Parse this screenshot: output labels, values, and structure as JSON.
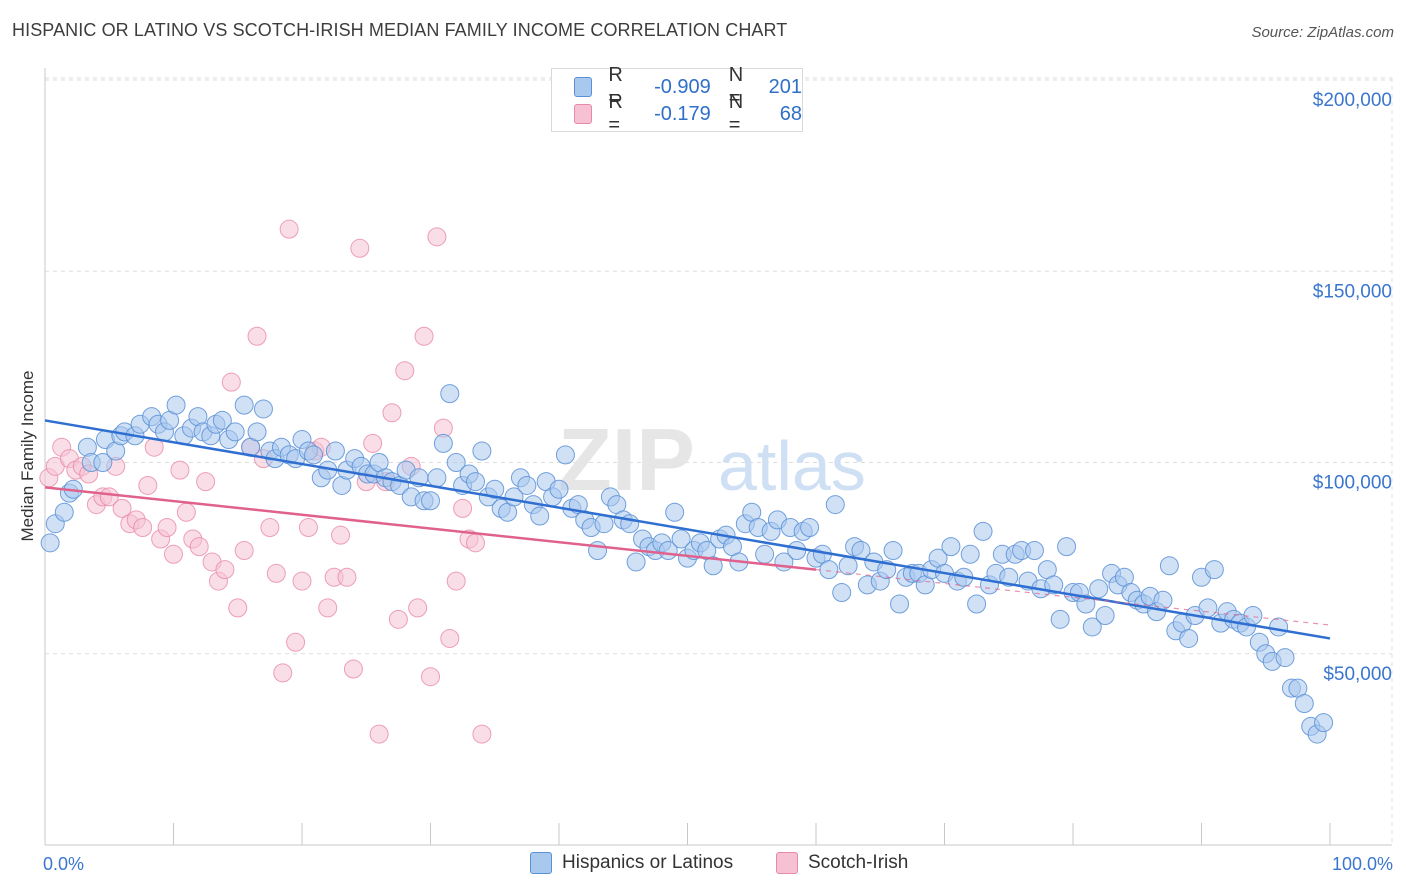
{
  "title": "HISPANIC OR LATINO VS SCOTCH-IRISH MEDIAN FAMILY INCOME CORRELATION CHART",
  "source": "Source: ZipAtlas.com",
  "watermark": {
    "zip": "ZIP",
    "atlas": "atlas"
  },
  "legend_top": [
    {
      "r_label": "R =",
      "r_value": "-0.909",
      "n_label": "N =",
      "n_value": "201"
    },
    {
      "r_label": "R =",
      "r_value": "-0.179",
      "n_label": "N =",
      "n_value": "68"
    }
  ],
  "colors": {
    "blue_fill": "#a9c8ee",
    "blue_stroke": "#5b90d6",
    "blue_line": "#2f6fd1",
    "pink_fill": "#f6c2d3",
    "pink_stroke": "#e889a8",
    "pink_line": "#e0628c",
    "grid": "#dddddd",
    "axis_label": "#3a76cf"
  },
  "chart_data": {
    "type": "scatter",
    "title": "HISPANIC OR LATINO VS SCOTCH-IRISH MEDIAN FAMILY INCOME CORRELATION CHART",
    "ylabel": "Median Family Income",
    "xlim": [
      0,
      100
    ],
    "ylim": [
      0,
      210000
    ],
    "x_tick_labels": [
      "0.0%",
      "100.0%"
    ],
    "y_ticks": [
      50000,
      100000,
      150000,
      200000
    ],
    "y_tick_labels": [
      "$50,000",
      "$100,000",
      "$150,000",
      "$200,000"
    ],
    "series": [
      {
        "name": "Hispanics or Latinos",
        "r": -0.909,
        "n": 201,
        "trend": {
          "x": [
            0,
            100
          ],
          "y": [
            111000,
            54000
          ]
        },
        "points": [
          [
            0.4,
            79000
          ],
          [
            0.8,
            84000
          ],
          [
            1.5,
            87000
          ],
          [
            1.9,
            92000
          ],
          [
            2.2,
            93000
          ],
          [
            3.3,
            104000
          ],
          [
            3.6,
            100000
          ],
          [
            4.5,
            100000
          ],
          [
            4.7,
            106000
          ],
          [
            5.5,
            103000
          ],
          [
            5.9,
            107000
          ],
          [
            6.2,
            108000
          ],
          [
            7.0,
            107000
          ],
          [
            7.4,
            110000
          ],
          [
            8.3,
            112000
          ],
          [
            8.8,
            110000
          ],
          [
            9.3,
            108000
          ],
          [
            9.7,
            111000
          ],
          [
            10.2,
            115000
          ],
          [
            10.8,
            107000
          ],
          [
            11.4,
            109000
          ],
          [
            11.9,
            112000
          ],
          [
            12.3,
            108000
          ],
          [
            12.9,
            107000
          ],
          [
            13.3,
            110000
          ],
          [
            13.8,
            111000
          ],
          [
            14.3,
            106000
          ],
          [
            14.8,
            108000
          ],
          [
            15.5,
            115000
          ],
          [
            16.0,
            104000
          ],
          [
            16.5,
            108000
          ],
          [
            17.0,
            114000
          ],
          [
            17.5,
            103000
          ],
          [
            17.9,
            101000
          ],
          [
            18.4,
            104000
          ],
          [
            19.0,
            102000
          ],
          [
            19.5,
            101000
          ],
          [
            20.0,
            106000
          ],
          [
            20.5,
            103000
          ],
          [
            20.9,
            102000
          ],
          [
            21.5,
            96000
          ],
          [
            22.0,
            98000
          ],
          [
            22.6,
            103000
          ],
          [
            23.1,
            94000
          ],
          [
            23.5,
            98000
          ],
          [
            24.1,
            101000
          ],
          [
            24.6,
            99000
          ],
          [
            25.1,
            97000
          ],
          [
            25.6,
            97000
          ],
          [
            26.0,
            100000
          ],
          [
            26.5,
            96000
          ],
          [
            27.0,
            95000
          ],
          [
            27.6,
            94000
          ],
          [
            28.1,
            98000
          ],
          [
            28.5,
            91000
          ],
          [
            29.1,
            96000
          ],
          [
            29.5,
            90000
          ],
          [
            30.0,
            90000
          ],
          [
            30.5,
            96000
          ],
          [
            31.0,
            105000
          ],
          [
            31.5,
            118000
          ],
          [
            32.0,
            100000
          ],
          [
            32.5,
            94000
          ],
          [
            33.0,
            97000
          ],
          [
            33.5,
            95000
          ],
          [
            34.0,
            103000
          ],
          [
            34.5,
            91000
          ],
          [
            35.0,
            93000
          ],
          [
            35.5,
            88000
          ],
          [
            36.0,
            87000
          ],
          [
            36.5,
            91000
          ],
          [
            37.0,
            96000
          ],
          [
            37.5,
            94000
          ],
          [
            38.0,
            89000
          ],
          [
            38.5,
            86000
          ],
          [
            39.0,
            95000
          ],
          [
            39.5,
            91000
          ],
          [
            40.0,
            93000
          ],
          [
            40.5,
            102000
          ],
          [
            41.0,
            88000
          ],
          [
            41.5,
            89000
          ],
          [
            42.0,
            85000
          ],
          [
            42.5,
            83000
          ],
          [
            43.0,
            77000
          ],
          [
            43.5,
            84000
          ],
          [
            44.0,
            91000
          ],
          [
            44.5,
            89000
          ],
          [
            45.0,
            85000
          ],
          [
            45.5,
            84000
          ],
          [
            46.0,
            74000
          ],
          [
            46.5,
            80000
          ],
          [
            47.0,
            78000
          ],
          [
            47.5,
            77000
          ],
          [
            48.0,
            79000
          ],
          [
            48.5,
            77000
          ],
          [
            49.0,
            87000
          ],
          [
            49.5,
            80000
          ],
          [
            50.0,
            75000
          ],
          [
            50.5,
            77000
          ],
          [
            51.0,
            79000
          ],
          [
            51.5,
            77000
          ],
          [
            52.0,
            73000
          ],
          [
            52.5,
            80000
          ],
          [
            53.0,
            81000
          ],
          [
            53.5,
            78000
          ],
          [
            54.0,
            74000
          ],
          [
            54.5,
            84000
          ],
          [
            55.0,
            87000
          ],
          [
            55.5,
            83000
          ],
          [
            56.0,
            76000
          ],
          [
            56.5,
            82000
          ],
          [
            57.0,
            85000
          ],
          [
            57.5,
            74000
          ],
          [
            58.0,
            83000
          ],
          [
            58.5,
            77000
          ],
          [
            59.0,
            82000
          ],
          [
            59.5,
            83000
          ],
          [
            60.0,
            75000
          ],
          [
            60.5,
            76000
          ],
          [
            61.0,
            72000
          ],
          [
            61.5,
            89000
          ],
          [
            62.0,
            66000
          ],
          [
            62.5,
            73000
          ],
          [
            63.0,
            78000
          ],
          [
            63.5,
            77000
          ],
          [
            64.0,
            68000
          ],
          [
            64.5,
            74000
          ],
          [
            65.0,
            69000
          ],
          [
            65.5,
            72000
          ],
          [
            66.0,
            77000
          ],
          [
            66.5,
            63000
          ],
          [
            67.0,
            70000
          ],
          [
            67.5,
            71000
          ],
          [
            68.0,
            71000
          ],
          [
            68.5,
            68000
          ],
          [
            69.0,
            72000
          ],
          [
            69.5,
            75000
          ],
          [
            70.0,
            71000
          ],
          [
            70.5,
            78000
          ],
          [
            71.0,
            69000
          ],
          [
            71.5,
            70000
          ],
          [
            72.0,
            76000
          ],
          [
            72.5,
            63000
          ],
          [
            73.0,
            82000
          ],
          [
            73.5,
            68000
          ],
          [
            74.0,
            71000
          ],
          [
            74.5,
            76000
          ],
          [
            75.0,
            70000
          ],
          [
            75.5,
            76000
          ],
          [
            76.0,
            77000
          ],
          [
            76.5,
            69000
          ],
          [
            77.0,
            77000
          ],
          [
            77.5,
            67000
          ],
          [
            78.0,
            72000
          ],
          [
            78.5,
            68000
          ],
          [
            79.0,
            59000
          ],
          [
            79.5,
            78000
          ],
          [
            80.0,
            66000
          ],
          [
            80.5,
            66000
          ],
          [
            81.0,
            63000
          ],
          [
            81.5,
            57000
          ],
          [
            82.0,
            67000
          ],
          [
            82.5,
            60000
          ],
          [
            83.0,
            71000
          ],
          [
            83.5,
            68000
          ],
          [
            84.0,
            70000
          ],
          [
            84.5,
            66000
          ],
          [
            85.0,
            64000
          ],
          [
            85.5,
            63000
          ],
          [
            86.0,
            65000
          ],
          [
            86.5,
            61000
          ],
          [
            87.0,
            64000
          ],
          [
            87.5,
            73000
          ],
          [
            88.0,
            56000
          ],
          [
            88.5,
            58000
          ],
          [
            89.0,
            54000
          ],
          [
            89.5,
            60000
          ],
          [
            90.0,
            70000
          ],
          [
            90.5,
            62000
          ],
          [
            91.0,
            72000
          ],
          [
            91.5,
            58000
          ],
          [
            92.0,
            61000
          ],
          [
            92.5,
            59000
          ],
          [
            93.0,
            58000
          ],
          [
            93.5,
            57000
          ],
          [
            94.0,
            60000
          ],
          [
            94.5,
            53000
          ],
          [
            95.0,
            50000
          ],
          [
            95.5,
            48000
          ],
          [
            96.0,
            57000
          ],
          [
            96.5,
            49000
          ],
          [
            97.0,
            41000
          ],
          [
            97.5,
            41000
          ],
          [
            98.0,
            37000
          ],
          [
            98.5,
            31000
          ],
          [
            99.0,
            29000
          ],
          [
            99.5,
            32000
          ]
        ]
      },
      {
        "name": "Scotch-Irish",
        "r": -0.179,
        "n": 68,
        "trend": {
          "x": [
            0,
            60
          ],
          "y": [
            93500,
            72000
          ]
        },
        "trend_dashed": {
          "x": [
            60,
            100
          ],
          "y": [
            72000,
            57500
          ]
        },
        "points": [
          [
            0.3,
            96000
          ],
          [
            0.8,
            99000
          ],
          [
            1.3,
            104000
          ],
          [
            1.9,
            101000
          ],
          [
            2.4,
            98000
          ],
          [
            2.9,
            99000
          ],
          [
            3.4,
            97000
          ],
          [
            4.0,
            89000
          ],
          [
            4.5,
            91000
          ],
          [
            5.0,
            91000
          ],
          [
            5.5,
            99000
          ],
          [
            6.0,
            88000
          ],
          [
            6.6,
            84000
          ],
          [
            7.1,
            85000
          ],
          [
            7.6,
            83000
          ],
          [
            8.0,
            94000
          ],
          [
            8.5,
            104000
          ],
          [
            9.0,
            80000
          ],
          [
            9.5,
            83000
          ],
          [
            10.0,
            76000
          ],
          [
            10.5,
            98000
          ],
          [
            11.0,
            87000
          ],
          [
            11.5,
            80000
          ],
          [
            12.0,
            78000
          ],
          [
            12.5,
            95000
          ],
          [
            13.0,
            74000
          ],
          [
            13.5,
            69000
          ],
          [
            14.0,
            72000
          ],
          [
            14.5,
            121000
          ],
          [
            15.0,
            62000
          ],
          [
            15.5,
            77000
          ],
          [
            16.0,
            104000
          ],
          [
            16.5,
            133000
          ],
          [
            17.0,
            101000
          ],
          [
            17.5,
            83000
          ],
          [
            18.0,
            71000
          ],
          [
            18.5,
            45000
          ],
          [
            19.0,
            161000
          ],
          [
            19.5,
            53000
          ],
          [
            20.0,
            69000
          ],
          [
            20.5,
            83000
          ],
          [
            21.0,
            103000
          ],
          [
            21.5,
            104000
          ],
          [
            22.0,
            62000
          ],
          [
            22.5,
            70000
          ],
          [
            23.0,
            81000
          ],
          [
            23.5,
            70000
          ],
          [
            24.0,
            46000
          ],
          [
            24.5,
            156000
          ],
          [
            25.0,
            95000
          ],
          [
            25.5,
            105000
          ],
          [
            26.0,
            29000
          ],
          [
            26.5,
            95000
          ],
          [
            27.0,
            113000
          ],
          [
            27.5,
            59000
          ],
          [
            28.0,
            124000
          ],
          [
            28.5,
            99000
          ],
          [
            29.0,
            62000
          ],
          [
            29.5,
            133000
          ],
          [
            30.0,
            44000
          ],
          [
            30.5,
            159000
          ],
          [
            31.0,
            109000
          ],
          [
            31.5,
            54000
          ],
          [
            32.0,
            69000
          ],
          [
            32.5,
            88000
          ],
          [
            33.0,
            80000
          ],
          [
            33.5,
            79000
          ],
          [
            34.0,
            29000
          ]
        ]
      }
    ]
  },
  "bottom_legend": [
    "Hispanics or Latinos",
    "Scotch-Irish"
  ]
}
